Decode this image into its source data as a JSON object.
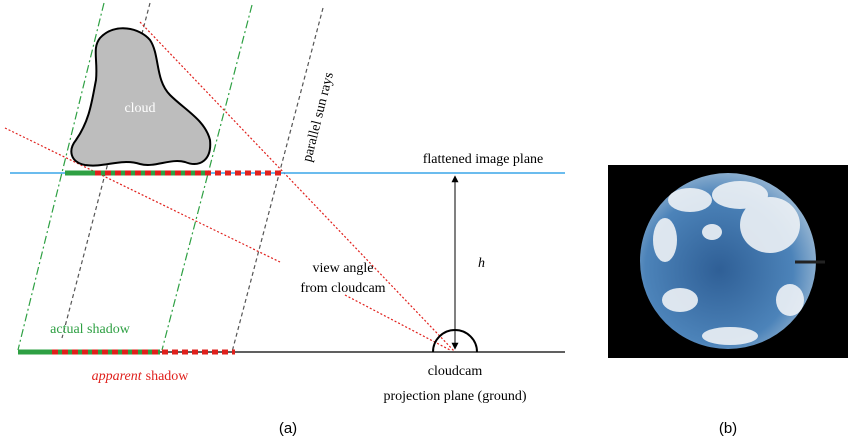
{
  "diagram": {
    "cloud_label": "cloud",
    "rays_label": "parallel sun rays",
    "image_plane_label": "flattened image plane",
    "height_label": "h",
    "view_angle_label": [
      "view angle",
      "from cloudcam"
    ],
    "actual_shadow_label": "actual shadow",
    "apparent_shadow_label": {
      "emphasis": "apparent",
      "rest": "shadow"
    },
    "camera_label": "cloudcam",
    "ground_label": "projection plane (ground)",
    "panel_a_caption": "(a)",
    "panel_b_caption": "(b)"
  }
}
